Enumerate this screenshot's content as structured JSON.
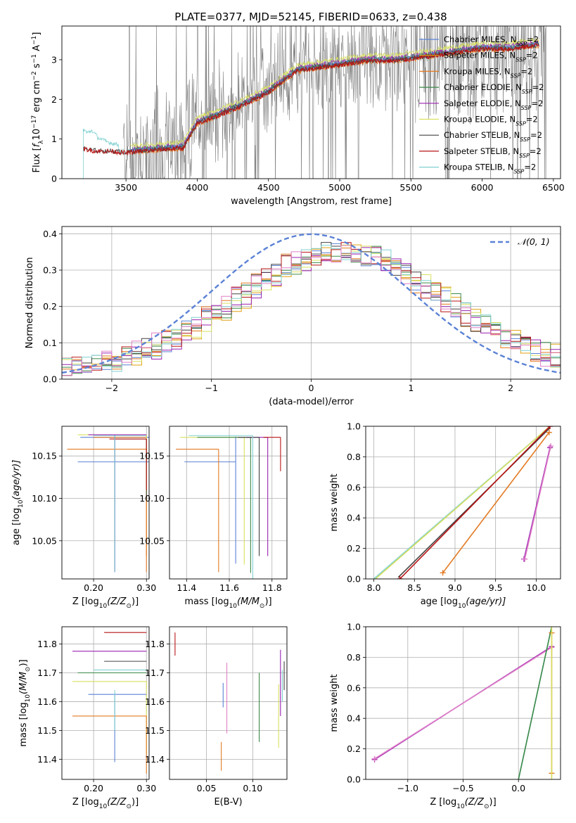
{
  "figure": {
    "title": "PLATE=0377, MJD=52145, FIBERID=0633, z=0.438"
  },
  "colors": {
    "chabrier_miles": "#5b82d6",
    "salpeter_miles": "#e0a010",
    "kroupa_miles": "#e37a22",
    "chabrier_elodie": "#3d8a4a",
    "salpeter_elodie": "#9a22b0",
    "kroupa_elodie": "#d8e060",
    "chabrier_stelib": "#444444",
    "salpeter_stelib": "#b81414",
    "kroupa_stelib": "#80d0d0",
    "data": "#808080",
    "normal": "#5b82d6",
    "grid": "#b0b0b0"
  },
  "chart_data": [
    {
      "id": "spectrum",
      "type": "line",
      "xlabel": "wavelength [Angstrom, rest frame]",
      "ylabel_main": "Flux [",
      "ylabel_flam": "f",
      "ylabel_lam": "λ",
      "ylabel_rest": "10",
      "ylabel_exp1": "−17",
      "ylabel_unit": " erg cm",
      "ylabel_exp2": "−2",
      "ylabel_s": " s",
      "ylabel_exp3": "−1",
      "ylabel_A": " A",
      "ylabel_exp4": "−1",
      "ylabel_end": "]",
      "xlim": [
        3050,
        6550
      ],
      "ylim": [
        0,
        3.85
      ],
      "xticks": [
        3500,
        4000,
        4500,
        5000,
        5500,
        6000,
        6500
      ],
      "yticks": [
        0,
        1,
        2,
        3
      ],
      "legend_position": "top-right",
      "legend": [
        {
          "label": "Chabrier MILES, N",
          "sub": "SSP",
          "tail": "=2",
          "color_key": "chabrier_miles"
        },
        {
          "label": "Salpeter MILES, N",
          "sub": "SSP",
          "tail": "=2",
          "color_key": "salpeter_miles"
        },
        {
          "label": "Kroupa MILES, N",
          "sub": "SSP",
          "tail": "=2",
          "color_key": "kroupa_miles"
        },
        {
          "label": "Chabrier ELODIE, N",
          "sub": "SSP",
          "tail": "=2",
          "color_key": "chabrier_elodie"
        },
        {
          "label": "Salpeter ELODIE, N",
          "sub": "SSP",
          "tail": "=2",
          "color_key": "salpeter_elodie"
        },
        {
          "label": "Kroupa ELODIE, N",
          "sub": "SSP",
          "tail": "=2",
          "color_key": "kroupa_elodie"
        },
        {
          "label": "Chabrier STELIB, N",
          "sub": "SSP",
          "tail": "=2",
          "color_key": "chabrier_stelib"
        },
        {
          "label": "Salpeter STELIB, N",
          "sub": "SSP",
          "tail": "=2",
          "color_key": "salpeter_stelib"
        },
        {
          "label": "Kroupa STELIB, N",
          "sub": "SSP",
          "tail": "=2",
          "color_key": "kroupa_stelib"
        }
      ],
      "model_continuum": {
        "x": [
          3200,
          3250,
          3300,
          3400,
          3500,
          3600,
          3700,
          3800,
          3900,
          4000,
          4100,
          4200,
          4300,
          4500,
          4700,
          4900,
          5000,
          5200,
          5400,
          5600,
          5800,
          6000,
          6200,
          6400
        ],
        "y": [
          0.78,
          0.75,
          0.72,
          0.72,
          0.68,
          0.72,
          0.75,
          0.78,
          0.8,
          1.42,
          1.55,
          1.7,
          1.85,
          2.2,
          2.75,
          2.85,
          2.9,
          3.0,
          3.0,
          3.1,
          3.2,
          3.3,
          3.3,
          3.4
        ]
      },
      "stelib_blue_x": [
        3200,
        3230,
        3260,
        3300,
        3350,
        3400,
        3450
      ],
      "stelib_blue_y": [
        1.25,
        1.15,
        1.22,
        1.05,
        0.95,
        0.9,
        0.85
      ]
    },
    {
      "id": "residuals",
      "type": "step",
      "xlabel": "(data-model)/error",
      "ylabel": "Normed distribution",
      "xlim": [
        -2.5,
        2.5
      ],
      "ylim": [
        0,
        0.42
      ],
      "xticks": [
        -2,
        -1,
        0,
        1,
        2
      ],
      "yticks": [
        0.0,
        0.1,
        0.2,
        0.3,
        0.4
      ],
      "legend_position": "top-right",
      "legend": [
        {
          "label": "𝒩(0, 1)",
          "color_key": "normal"
        }
      ],
      "bin_width": 0.1,
      "bin_start": -2.5,
      "base_mean": 0.3,
      "base_sigma": 1.0
    },
    {
      "id": "age_vs_Z",
      "type": "errorbar",
      "xlabel": "Z [log",
      "xlabel_sub": "10",
      "xlabel_tail": "(Z/Z",
      "xlabel_end": ")]",
      "ylabel": "age  [log",
      "ylabel_sub": "10",
      "ylabel_tail": "(age/yr)]",
      "xlim": [
        0.14,
        0.305
      ],
      "ylim": [
        10.005,
        10.185
      ],
      "xticks": [
        0.2,
        0.3
      ],
      "yticks": [
        10.05,
        10.1,
        10.15
      ],
      "points": [
        {
          "x": 0.24,
          "y": 10.172,
          "xerr": [
            0.065,
            0.065
          ],
          "yerr": [
            0.157,
            0.0
          ],
          "color_key": "chabrier_miles"
        },
        {
          "x": 0.3,
          "y": 10.172,
          "xerr": [
            0.1,
            0.0
          ],
          "yerr": [
            0.14,
            0.0
          ],
          "color_key": "kroupa_miles"
        },
        {
          "x": 0.24,
          "y": 10.143,
          "xerr": [
            0.07,
            0.07
          ],
          "yerr": [
            0.13,
            0.03
          ],
          "color_key": "chabrier_miles"
        },
        {
          "x": 0.3,
          "y": 10.158,
          "xerr": [
            0.15,
            0.0
          ],
          "yerr": [
            0.145,
            0.015
          ],
          "color_key": "kroupa_miles"
        },
        {
          "x": 0.3,
          "y": 10.175,
          "xerr": [
            0.13,
            0.0
          ],
          "yerr": [
            0.07,
            0.0
          ],
          "color_key": "kroupa_elodie"
        },
        {
          "x": 0.24,
          "y": 10.175,
          "xerr": [
            0.05,
            0.06
          ],
          "yerr": [
            0.16,
            0.0
          ],
          "color_key": "salpeter_elodie"
        },
        {
          "x": 0.3,
          "y": 10.17,
          "xerr": [
            0.06,
            0.0
          ],
          "yerr": [
            0.07,
            0.0
          ],
          "color_key": "chabrier_stelib"
        },
        {
          "x": 0.3,
          "y": 10.17,
          "xerr": [
            0.07,
            0.0
          ],
          "yerr": [
            0.06,
            0.0
          ],
          "color_key": "salpeter_stelib"
        },
        {
          "x": 0.24,
          "y": 10.174,
          "xerr": [
            0.04,
            0.06
          ],
          "yerr": [
            0.16,
            0.0
          ],
          "color_key": "kroupa_stelib"
        }
      ]
    },
    {
      "id": "age_vs_mass",
      "type": "errorbar",
      "xlabel": "mass [log",
      "xlabel_sub": "10",
      "xlabel_tail": "(M/M",
      "xlabel_end": ")]",
      "xlim": [
        11.32,
        11.87
      ],
      "ylim": [
        10.005,
        10.185
      ],
      "xticks": [
        11.4,
        11.6,
        11.8
      ],
      "yticks": [
        10.05,
        10.1,
        10.15
      ],
      "points": [
        {
          "x": 11.63,
          "y": 10.143,
          "xerr": [
            0.24,
            0.0
          ],
          "yerr": [
            0.12,
            0.03
          ],
          "color_key": "chabrier_miles"
        },
        {
          "x": 11.55,
          "y": 10.158,
          "xerr": [
            0.2,
            0.0
          ],
          "yerr": [
            0.145,
            0.0
          ],
          "color_key": "kroupa_miles"
        },
        {
          "x": 11.67,
          "y": 10.172,
          "xerr": [
            0.3,
            0.0
          ],
          "yerr": [
            0.15,
            0.0
          ],
          "color_key": "kroupa_elodie"
        },
        {
          "x": 11.7,
          "y": 10.172,
          "xerr": [
            0.25,
            0.0
          ],
          "yerr": [
            0.16,
            0.0
          ],
          "color_key": "chabrier_elodie"
        },
        {
          "x": 11.78,
          "y": 10.172,
          "xerr": [
            0.1,
            0.0
          ],
          "yerr": [
            0.14,
            0.0
          ],
          "color_key": "salpeter_elodie"
        },
        {
          "x": 11.74,
          "y": 10.172,
          "xerr": [
            0.1,
            0.0
          ],
          "yerr": [
            0.14,
            0.0
          ],
          "color_key": "chabrier_stelib"
        },
        {
          "x": 11.84,
          "y": 10.172,
          "xerr": [
            0.08,
            0.0
          ],
          "yerr": [
            0.04,
            0.0
          ],
          "color_key": "salpeter_stelib"
        },
        {
          "x": 11.71,
          "y": 10.174,
          "xerr": [
            0.3,
            0.0
          ],
          "yerr": [
            0.17,
            0.0
          ],
          "color_key": "kroupa_stelib"
        }
      ]
    },
    {
      "id": "weight_vs_age",
      "type": "line",
      "xlabel": "age  [log",
      "xlabel_sub": "10",
      "xlabel_tail": "(age/yr)]",
      "ylabel": "mass weight",
      "xlim": [
        7.9,
        10.3
      ],
      "ylim": [
        0,
        1.0
      ],
      "xticks": [
        8.0,
        8.5,
        9.0,
        9.5,
        10.0
      ],
      "yticks": [
        0.0,
        0.2,
        0.4,
        0.6,
        0.8,
        1.0
      ],
      "series": [
        {
          "x": [
            8.0,
            10.17
          ],
          "y": [
            0.0,
            1.0
          ],
          "color_key": "kroupa_stelib",
          "marker": false
        },
        {
          "x": [
            8.02,
            10.17
          ],
          "y": [
            0.0,
            1.0
          ],
          "color_key": "kroupa_elodie",
          "marker": false
        },
        {
          "x": [
            8.3,
            10.17
          ],
          "y": [
            0.01,
            0.99
          ],
          "color_key": "chabrier_stelib",
          "marker": false
        },
        {
          "x": [
            8.32,
            10.17
          ],
          "y": [
            0.0,
            1.0
          ],
          "color_key": "salpeter_stelib",
          "marker": true
        },
        {
          "x": [
            8.85,
            10.16
          ],
          "y": [
            0.04,
            0.96
          ],
          "color_key": "kroupa_miles",
          "marker": true
        },
        {
          "x": [
            9.85,
            10.17
          ],
          "y": [
            0.13,
            0.86
          ],
          "color_key": "salpeter_elodie",
          "marker": true
        },
        {
          "x": [
            9.86,
            10.18
          ],
          "y": [
            0.13,
            0.87
          ],
          "color_key": "kroupa_miles_pink",
          "marker": true
        }
      ]
    },
    {
      "id": "mass_vs_Z",
      "type": "errorbar",
      "xlabel": "Z [log",
      "xlabel_sub": "10",
      "xlabel_tail": "(Z/Z",
      "xlabel_end": ")]",
      "ylabel": "mass [log",
      "ylabel_sub": "10",
      "ylabel_tail": "(M/M",
      "ylabel_end": ")]",
      "xlim": [
        0.14,
        0.305
      ],
      "ylim": [
        11.33,
        11.86
      ],
      "xticks": [
        0.2,
        0.3
      ],
      "yticks": [
        11.4,
        11.5,
        11.6,
        11.7,
        11.8
      ],
      "points": [
        {
          "x": 0.3,
          "y": 11.84,
          "xerr": [
            0.08,
            0.0
          ],
          "yerr": [
            0.0,
            0.0
          ],
          "color_key": "salpeter_stelib"
        },
        {
          "x": 0.3,
          "y": 11.775,
          "xerr": [
            0.14,
            0.0
          ],
          "yerr": [
            0.0,
            0.0
          ],
          "color_key": "salpeter_elodie"
        },
        {
          "x": 0.3,
          "y": 11.74,
          "xerr": [
            0.08,
            0.0
          ],
          "yerr": [
            0.0,
            0.0
          ],
          "color_key": "chabrier_stelib"
        },
        {
          "x": 0.3,
          "y": 11.71,
          "xerr": [
            0.1,
            0.0
          ],
          "yerr": [
            0.0,
            0.0
          ],
          "color_key": "kroupa_stelib"
        },
        {
          "x": 0.3,
          "y": 11.7,
          "xerr": [
            0.13,
            0.0
          ],
          "yerr": [
            0.0,
            0.0
          ],
          "color_key": "chabrier_elodie"
        },
        {
          "x": 0.3,
          "y": 11.67,
          "xerr": [
            0.14,
            0.0
          ],
          "yerr": [
            0.25,
            0.0
          ],
          "color_key": "kroupa_elodie"
        },
        {
          "x": 0.3,
          "y": 11.625,
          "xerr": [
            0.11,
            0.0
          ],
          "yerr": [
            0.0,
            0.0
          ],
          "color_key": "chabrier_miles"
        },
        {
          "x": 0.3,
          "y": 11.55,
          "xerr": [
            0.14,
            0.0
          ],
          "yerr": [
            0.2,
            0.0
          ],
          "color_key": "kroupa_miles"
        },
        {
          "x": 0.24,
          "y": 11.625,
          "xerr": [
            0.0,
            0.0
          ],
          "yerr": [
            0.235,
            0.0
          ],
          "color_key": "chabrier_miles"
        },
        {
          "x": 0.24,
          "y": 11.64,
          "xerr": [
            0.0,
            0.0
          ],
          "yerr": [
            0.14,
            0.0
          ],
          "color_key": "kroupa_stelib"
        }
      ]
    },
    {
      "id": "mass_vs_ebv",
      "type": "errorbar",
      "xlabel": "E(B-V)",
      "xlim": [
        0.01,
        0.137
      ],
      "ylim": [
        11.33,
        11.86
      ],
      "xticks": [
        0.05,
        0.1
      ],
      "yticks": [
        11.4,
        11.5,
        11.6,
        11.7,
        11.8
      ],
      "points": [
        {
          "x": 0.016,
          "y": 11.8,
          "xerr": [
            0,
            0
          ],
          "yerr": [
            0.04,
            0.04
          ],
          "color_key": "salpeter_stelib"
        },
        {
          "x": 0.066,
          "y": 11.46,
          "xerr": [
            0,
            0
          ],
          "yerr": [
            0.1,
            0.0
          ],
          "color_key": "kroupa_miles"
        },
        {
          "x": 0.068,
          "y": 11.58,
          "xerr": [
            0,
            0
          ],
          "yerr": [
            0.0,
            0.085
          ],
          "color_key": "chabrier_miles"
        },
        {
          "x": 0.072,
          "y": 11.61,
          "xerr": [
            0,
            0
          ],
          "yerr": [
            0.12,
            0.125
          ],
          "color_key": "kroupa_stelib_pink"
        },
        {
          "x": 0.107,
          "y": 11.58,
          "xerr": [
            0,
            0
          ],
          "yerr": [
            0.12,
            0.12
          ],
          "color_key": "chabrier_elodie"
        },
        {
          "x": 0.128,
          "y": 11.55,
          "xerr": [
            0,
            0
          ],
          "yerr": [
            0.11,
            0.11
          ],
          "color_key": "kroupa_elodie"
        },
        {
          "x": 0.13,
          "y": 11.67,
          "xerr": [
            0,
            0
          ],
          "yerr": [
            0.12,
            0.11
          ],
          "color_key": "salpeter_elodie"
        },
        {
          "x": 0.134,
          "y": 11.69,
          "xerr": [
            0,
            0
          ],
          "yerr": [
            0.05,
            0.05
          ],
          "color_key": "chabrier_stelib"
        },
        {
          "x": 0.132,
          "y": 11.65,
          "xerr": [
            0,
            0
          ],
          "yerr": [
            0.05,
            0.06
          ],
          "color_key": "kroupa_stelib"
        }
      ]
    },
    {
      "id": "weight_vs_Z",
      "type": "line",
      "xlabel": "Z [log",
      "xlabel_sub": "10",
      "xlabel_tail": "(Z/Z",
      "xlabel_end": ")]",
      "ylabel": "mass weight",
      "xlim": [
        -1.38,
        0.38
      ],
      "ylim": [
        0,
        1.0
      ],
      "xticks": [
        -1.0,
        -0.5,
        0.0
      ],
      "yticks": [
        0.0,
        0.2,
        0.4,
        0.6,
        0.8,
        1.0
      ],
      "series": [
        {
          "x": [
            -1.3,
            0.3
          ],
          "y": [
            0.13,
            0.87
          ],
          "color_key": "salpeter_elodie",
          "marker": true
        },
        {
          "x": [
            -1.3,
            0.3
          ],
          "y": [
            0.135,
            0.865
          ],
          "color_key": "kroupa_miles_pink",
          "marker": true
        },
        {
          "x": [
            0.0,
            0.3
          ],
          "y": [
            0.0,
            1.0
          ],
          "color_key": "kroupa_stelib",
          "marker": false
        },
        {
          "x": [
            0.0,
            0.3
          ],
          "y": [
            0.0,
            1.0
          ],
          "color_key": "chabrier_elodie",
          "marker": false
        },
        {
          "x": [
            0.3,
            0.3
          ],
          "y": [
            0.04,
            0.96
          ],
          "color_key": "kroupa_miles",
          "marker": true
        },
        {
          "x": [
            0.3,
            0.3
          ],
          "y": [
            0.0,
            1.0
          ],
          "color_key": "kroupa_elodie",
          "marker": false
        }
      ]
    }
  ]
}
